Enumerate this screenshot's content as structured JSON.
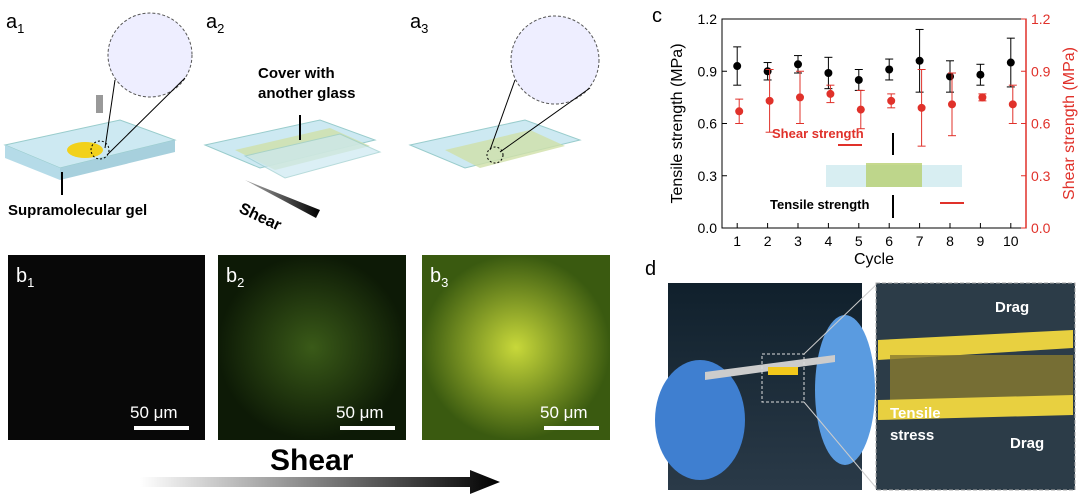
{
  "panels": {
    "a1": {
      "letter": "a",
      "sub": "1"
    },
    "a2": {
      "letter": "a",
      "sub": "2"
    },
    "a3": {
      "letter": "a",
      "sub": "3"
    },
    "b1": {
      "letter": "b",
      "sub": "1"
    },
    "b2": {
      "letter": "b",
      "sub": "2"
    },
    "b3": {
      "letter": "b",
      "sub": "3"
    },
    "c": "c",
    "d": "d"
  },
  "a_texts": {
    "gel": "Supramolecular gel",
    "cover": [
      "Cover with",
      "another glass"
    ],
    "shear": "Shear"
  },
  "b_texts": {
    "scale": [
      "50 μm",
      "50 μm",
      "50 μm"
    ],
    "shear": "Shear"
  },
  "d_texts": {
    "drag_top": "Drag",
    "drag_bottom": "Drag",
    "tensile": [
      "Tensile",
      "stress"
    ]
  },
  "chart_data": {
    "type": "scatter",
    "x_label": "Cycle",
    "y_label": "Tensile strength (MPa)",
    "y2_label": "Shear strength (MPa)",
    "x": [
      1,
      2,
      3,
      4,
      5,
      6,
      7,
      8,
      9,
      10
    ],
    "xlim": [
      0.5,
      10.5
    ],
    "xticks": [
      1,
      2,
      3,
      4,
      5,
      6,
      7,
      8,
      9,
      10
    ],
    "ylim": [
      0,
      1.2
    ],
    "yticks": [
      {
        "value": 0,
        "label": "0.0"
      },
      0.3,
      0.6,
      0.9,
      1.2
    ],
    "y2lim": [
      0,
      1.2
    ],
    "y2ticks": [
      {
        "value": 0,
        "label": "0.0"
      },
      0.3,
      0.6,
      0.9,
      1.2
    ],
    "annotations": [
      "Shear strength",
      "Tensile strength"
    ],
    "series": [
      {
        "name": "Tensile strength",
        "color": "#000000",
        "values": [
          0.93,
          0.9,
          0.94,
          0.89,
          0.85,
          0.91,
          0.96,
          0.87,
          0.88,
          0.95
        ],
        "errors": [
          0.11,
          0.05,
          0.05,
          0.09,
          0.06,
          0.06,
          0.18,
          0.09,
          0.06,
          0.14
        ]
      },
      {
        "name": "Shear strength",
        "color": "#e0312a",
        "axis": "y2",
        "values": [
          0.67,
          0.73,
          0.75,
          0.77,
          0.68,
          0.73,
          0.69,
          0.71,
          0.75,
          0.71
        ],
        "errors": [
          0.07,
          0.18,
          0.15,
          0.05,
          0.11,
          0.04,
          0.22,
          0.18,
          0.02,
          0.11
        ]
      }
    ]
  }
}
